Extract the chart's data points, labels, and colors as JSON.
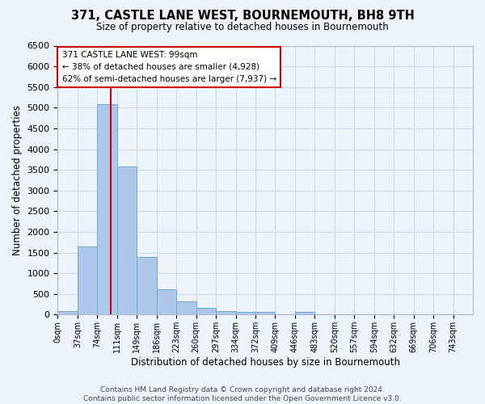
{
  "title": "371, CASTLE LANE WEST, BOURNEMOUTH, BH8 9TH",
  "subtitle": "Size of property relative to detached houses in Bournemouth",
  "xlabel": "Distribution of detached houses by size in Bournemouth",
  "ylabel": "Number of detached properties",
  "footer_line1": "Contains HM Land Registry data © Crown copyright and database right 2024.",
  "footer_line2": "Contains public sector information licensed under the Open Government Licence v3.0.",
  "bar_labels": [
    "0sqm",
    "37sqm",
    "74sqm",
    "111sqm",
    "149sqm",
    "186sqm",
    "223sqm",
    "260sqm",
    "297sqm",
    "334sqm",
    "372sqm",
    "409sqm",
    "446sqm",
    "483sqm",
    "520sqm",
    "557sqm",
    "594sqm",
    "632sqm",
    "669sqm",
    "706sqm",
    "743sqm"
  ],
  "bar_values": [
    75,
    1650,
    5080,
    3580,
    1400,
    620,
    310,
    155,
    90,
    55,
    65,
    0,
    65,
    0,
    0,
    0,
    0,
    0,
    0,
    0,
    0
  ],
  "bar_color": "#aec6e8",
  "bar_edge_color": "#6aaad4",
  "grid_color": "#d0d8e8",
  "background_color": "#eef2f9",
  "property_line_x": 99,
  "property_line_color": "#cc0000",
  "annotation_text": "371 CASTLE LANE WEST: 99sqm\n← 38% of detached houses are smaller (4,928)\n62% of semi-detached houses are larger (7,937) →",
  "annotation_box_color": "#ffffff",
  "annotation_box_edge": "#cc0000",
  "ylim": [
    0,
    6500
  ],
  "bin_width": 37,
  "n_bins": 21
}
